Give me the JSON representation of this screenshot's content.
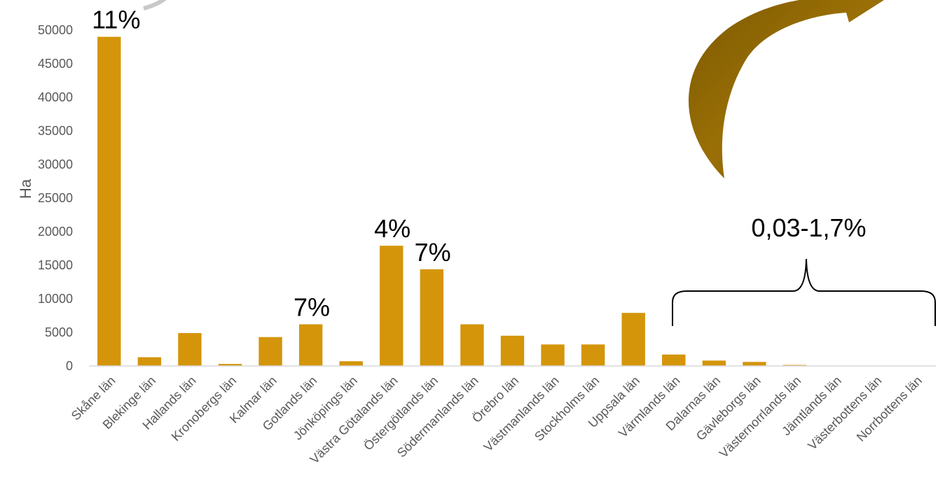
{
  "chart_data": {
    "type": "bar",
    "ylabel": "Ha",
    "xlabel": "",
    "ylim": [
      0,
      50000
    ],
    "yticks": [
      0,
      5000,
      10000,
      15000,
      20000,
      25000,
      30000,
      35000,
      40000,
      45000,
      50000
    ],
    "grid": false,
    "bar_color": "#D4950A",
    "categories": [
      "Skåne län",
      "Blekinge län",
      "Hallands län",
      "Kronobergs län",
      "Kalmar län",
      "Gotlands län",
      "Jönköpings län",
      "Västra Götalands län",
      "Östergötlands län",
      "Södermanlands län",
      "Örebro län",
      "Västmanlands län",
      "Stockholms län",
      "Uppsala län",
      "Värmlands län",
      "Dalarnas län",
      "Gävleborgs län",
      "Västernorrlands län",
      "Jämtlands län",
      "Västerbottens län",
      "Norrbottens län"
    ],
    "values": [
      49000,
      1300,
      4900,
      300,
      4300,
      6200,
      700,
      17900,
      14400,
      6200,
      4500,
      3200,
      3200,
      7900,
      1700,
      800,
      600,
      150,
      0,
      0,
      0
    ],
    "annotations": [
      {
        "text": "11%",
        "category": "Skåne län"
      },
      {
        "text": "7%",
        "category": "Gotlands län"
      },
      {
        "text": "4%",
        "category": "Västra Götalands län"
      },
      {
        "text": "7%",
        "category": "Östergötlands län"
      },
      {
        "text": "0,03-1,7%",
        "range": [
          "Värmlands län",
          "Norrbottens län"
        ]
      }
    ],
    "arrow_color": "#8B6400"
  }
}
